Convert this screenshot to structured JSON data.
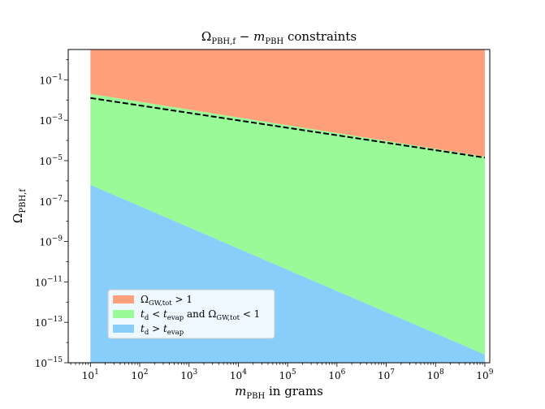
{
  "chart_data": {
    "type": "area",
    "title": "Ω_PBH,f − m_PBH constraints",
    "title_parts": {
      "a": "Ω",
      "a_sub": "PBH,f",
      "mid": " − ",
      "b": "m",
      "b_sub": "PBH",
      "rest": " constraints"
    },
    "xlabel": "m_PBH in grams",
    "xlabel_parts": {
      "a": "m",
      "a_sub": "PBH",
      "rest": " in grams"
    },
    "ylabel": "Ω_PBH,f",
    "ylabel_parts": {
      "a": "Ω",
      "a_sub": "PBH,f"
    },
    "x_scale": "log",
    "y_scale": "log",
    "xlim_log10": [
      0.55,
      9.1
    ],
    "ylim_log10": [
      -15,
      0.5
    ],
    "x_ticks": [
      {
        "exp": 1,
        "label": "10",
        "sup": "1"
      },
      {
        "exp": 2,
        "label": "10",
        "sup": "2"
      },
      {
        "exp": 3,
        "label": "10",
        "sup": "3"
      },
      {
        "exp": 4,
        "label": "10",
        "sup": "4"
      },
      {
        "exp": 5,
        "label": "10",
        "sup": "5"
      },
      {
        "exp": 6,
        "label": "10",
        "sup": "6"
      },
      {
        "exp": 7,
        "label": "10",
        "sup": "7"
      },
      {
        "exp": 8,
        "label": "10",
        "sup": "8"
      },
      {
        "exp": 9,
        "label": "10",
        "sup": "9"
      }
    ],
    "y_ticks": [
      {
        "exp": -1,
        "label": "10",
        "sup": "−1"
      },
      {
        "exp": -3,
        "label": "10",
        "sup": "−3"
      },
      {
        "exp": -5,
        "label": "10",
        "sup": "−5"
      },
      {
        "exp": -7,
        "label": "10",
        "sup": "−7"
      },
      {
        "exp": -9,
        "label": "10",
        "sup": "−9"
      },
      {
        "exp": -11,
        "label": "10",
        "sup": "−11"
      },
      {
        "exp": -13,
        "label": "10",
        "sup": "−13"
      },
      {
        "exp": -15,
        "label": "10",
        "sup": "−15"
      }
    ],
    "regions": [
      {
        "name": "Ω_GW,tot > 1",
        "color": "#FFA07A",
        "lower_log10": [
          [
            1,
            -1.7
          ],
          [
            9,
            -4.8
          ]
        ],
        "upper_log10": 0.5
      },
      {
        "name": "t_d < t_evap and Ω_GW,tot < 1",
        "color": "#98FB98",
        "lower_log10": [
          [
            1,
            -6.2
          ],
          [
            9,
            -14.6
          ]
        ],
        "upper_log10": [
          [
            1,
            -1.7
          ],
          [
            9,
            -4.8
          ]
        ]
      },
      {
        "name": "t_d > t_evap",
        "color": "#87CEFA",
        "lower_log10": -15,
        "upper_log10": [
          [
            1,
            -6.2
          ],
          [
            9,
            -14.6
          ]
        ]
      }
    ],
    "dashed_line_log10": [
      [
        1,
        -1.9
      ],
      [
        9,
        -4.85
      ]
    ],
    "data_x_range_log10": [
      1,
      9
    ],
    "legend": [
      {
        "color": "#FFA07A",
        "label": "Ω_GW,tot > 1",
        "parts": [
          {
            "t": "Ω"
          },
          {
            "t": "GW,tot",
            "sub": true
          },
          {
            "t": " > 1"
          }
        ]
      },
      {
        "color": "#98FB98",
        "label": "t_d < t_evap and Ω_GW,tot < 1",
        "parts": [
          {
            "t": "t",
            "it": true
          },
          {
            "t": "d",
            "sub": true
          },
          {
            "t": " < "
          },
          {
            "t": "t",
            "it": true
          },
          {
            "t": "evap",
            "sub": true
          },
          {
            "t": " and Ω"
          },
          {
            "t": "GW,tot",
            "sub": true
          },
          {
            "t": " < 1"
          }
        ]
      },
      {
        "color": "#87CEFA",
        "label": "t_d > t_evap",
        "parts": [
          {
            "t": "t",
            "it": true
          },
          {
            "t": "d",
            "sub": true
          },
          {
            "t": " > "
          },
          {
            "t": "t",
            "it": true
          },
          {
            "t": "evap",
            "sub": true
          }
        ]
      }
    ],
    "legend_position": "lower-left",
    "grid": false
  }
}
